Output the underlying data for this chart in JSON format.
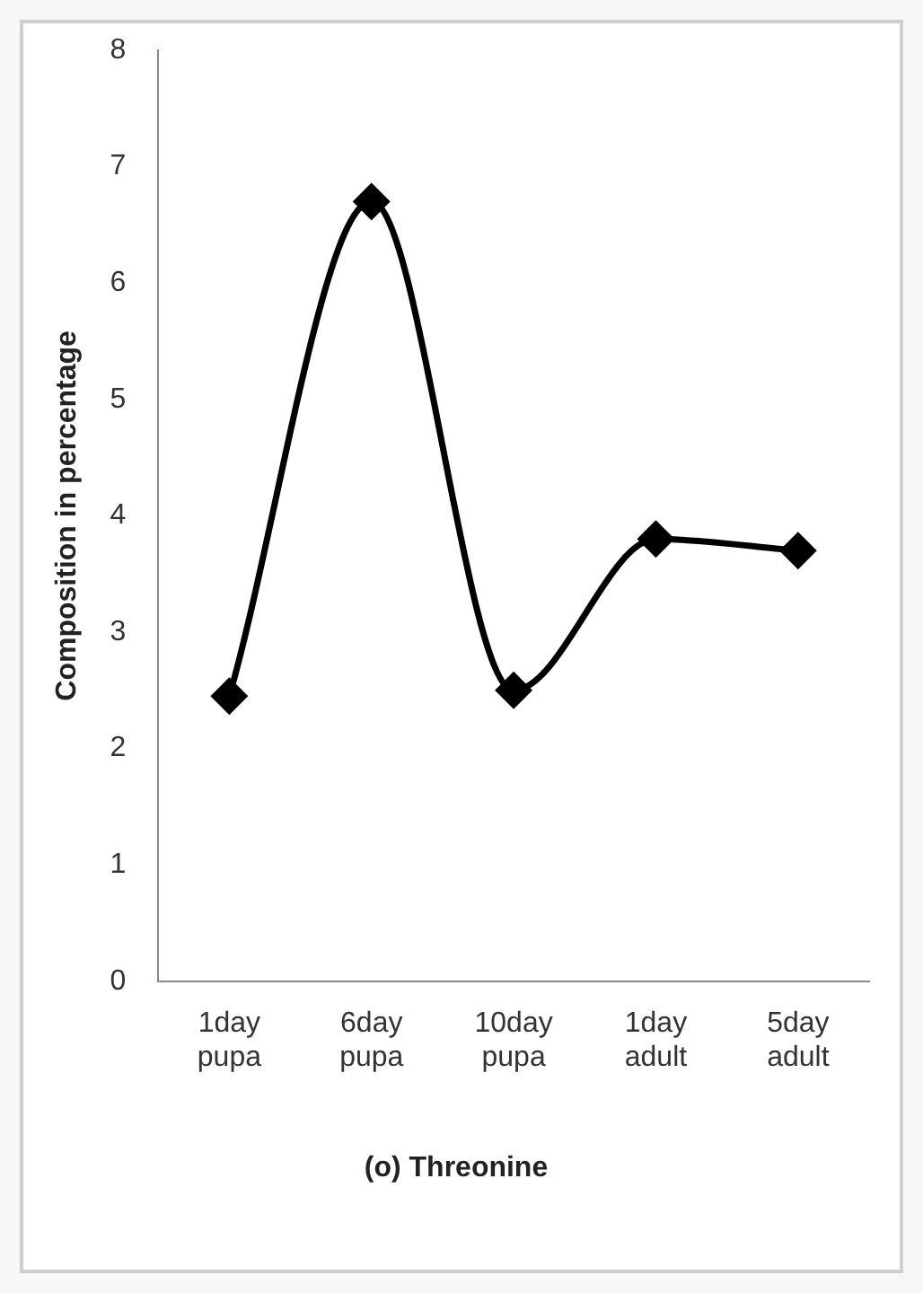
{
  "chart_data": {
    "type": "line",
    "title": "(o) Threonine",
    "ylabel": "Composition in percentage",
    "categories": [
      "1day pupa",
      "6day pupa",
      "10day pupa",
      "1day adult",
      "5day adult"
    ],
    "series": [
      {
        "color": "#000000",
        "values": [
          2.45,
          6.7,
          2.5,
          3.8,
          3.7
        ]
      }
    ],
    "ylim": [
      0,
      8
    ],
    "yticks": [
      0,
      1,
      2,
      3,
      4,
      5,
      6,
      7,
      8
    ],
    "grid": false,
    "legend": false,
    "marker": "diamond",
    "line_style": "solid"
  }
}
